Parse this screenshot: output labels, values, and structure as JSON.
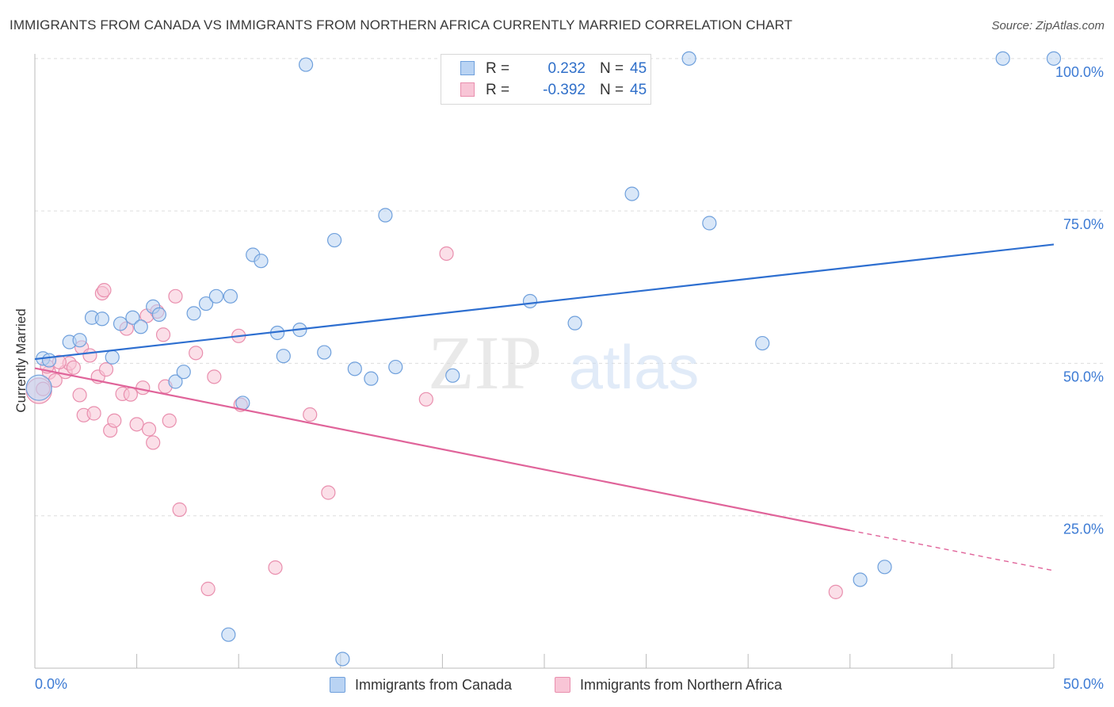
{
  "title": "IMMIGRANTS FROM CANADA VS IMMIGRANTS FROM NORTHERN AFRICA CURRENTLY MARRIED CORRELATION CHART",
  "source": "Source: ZipAtlas.com",
  "watermark": {
    "zip": "ZIP",
    "atlas": "atlas"
  },
  "legend": {
    "rows": [
      {
        "r_label": "R =",
        "r_value": "0.232",
        "n_label": "N =",
        "n_value": "45"
      },
      {
        "r_label": "R =",
        "r_value": "-0.392",
        "n_label": "N =",
        "n_value": "45"
      }
    ]
  },
  "colors": {
    "blue_fill": "#b9d3f3",
    "blue_stroke": "#6fa0dc",
    "blue_line": "#2e6fd0",
    "pink_fill": "#f8c5d6",
    "pink_stroke": "#e98fae",
    "pink_line": "#e0649a",
    "axis_text": "#3d7bd4",
    "grid": "#dddddd"
  },
  "chart_data": {
    "type": "scatter",
    "title": "IMMIGRANTS FROM CANADA VS IMMIGRANTS FROM NORTHERN AFRICA CURRENTLY MARRIED CORRELATION CHART",
    "xlabel": "",
    "ylabel": "Currently Married",
    "xlim": [
      0,
      50
    ],
    "ylim": [
      0,
      102
    ],
    "x_tick_labels": [
      "0.0%",
      "50.0%"
    ],
    "y_tick_labels": [
      "25.0%",
      "50.0%",
      "75.0%",
      "100.0%"
    ],
    "y_ticks": [
      25,
      50,
      75,
      100
    ],
    "grid": true,
    "legend_position": "bottom",
    "series": [
      {
        "name": "Immigrants from Canada",
        "r": 0.232,
        "n": 45,
        "trend": {
          "x0": 0,
          "y0": 50.7,
          "x1": 50,
          "y1": 69.5
        },
        "points": [
          [
            0.2,
            46
          ],
          [
            0.4,
            50.8
          ],
          [
            0.7,
            50.5
          ],
          [
            1.7,
            53.5
          ],
          [
            2.2,
            53.8
          ],
          [
            2.8,
            57.5
          ],
          [
            3.3,
            57.3
          ],
          [
            3.8,
            51.0
          ],
          [
            4.2,
            56.5
          ],
          [
            4.8,
            57.5
          ],
          [
            5.2,
            56.0
          ],
          [
            5.8,
            59.3
          ],
          [
            6.1,
            58.0
          ],
          [
            6.9,
            47.0
          ],
          [
            7.3,
            48.6
          ],
          [
            7.8,
            58.2
          ],
          [
            8.4,
            59.8
          ],
          [
            8.9,
            61.0
          ],
          [
            9.6,
            61.0
          ],
          [
            10.2,
            43.5
          ],
          [
            10.7,
            67.8
          ],
          [
            11.1,
            66.8
          ],
          [
            11.9,
            55.0
          ],
          [
            12.2,
            51.2
          ],
          [
            13.0,
            55.5
          ],
          [
            13.3,
            99.0
          ],
          [
            14.2,
            51.8
          ],
          [
            14.7,
            70.2
          ],
          [
            15.1,
            1.5
          ],
          [
            15.7,
            49.1
          ],
          [
            16.5,
            47.5
          ],
          [
            17.2,
            74.3
          ],
          [
            17.7,
            49.4
          ],
          [
            20.5,
            48.0
          ],
          [
            24.3,
            60.2
          ],
          [
            26.5,
            56.6
          ],
          [
            29.3,
            77.8
          ],
          [
            32.1,
            100
          ],
          [
            33.1,
            73.0
          ],
          [
            35.7,
            53.3
          ],
          [
            9.5,
            5.5
          ],
          [
            40.5,
            14.5
          ],
          [
            41.7,
            16.6
          ],
          [
            47.5,
            100
          ],
          [
            50.0,
            100
          ]
        ]
      },
      {
        "name": "Immigrants from Northern Africa",
        "r": -0.392,
        "n": 45,
        "trend": {
          "x0": 0,
          "y0": 49.2,
          "x1": 40,
          "y1": 22.6,
          "dash_x1": 50,
          "dash_y1": 16
        },
        "points": [
          [
            0.2,
            45.5
          ],
          [
            0.4,
            45.8
          ],
          [
            0.7,
            48.5
          ],
          [
            1.0,
            47.2
          ],
          [
            1.5,
            48.6
          ],
          [
            1.7,
            50.0
          ],
          [
            1.9,
            49.3
          ],
          [
            2.2,
            44.8
          ],
          [
            2.3,
            52.6
          ],
          [
            2.4,
            41.5
          ],
          [
            2.7,
            51.3
          ],
          [
            2.9,
            41.8
          ],
          [
            3.1,
            47.8
          ],
          [
            3.3,
            61.5
          ],
          [
            3.4,
            62.0
          ],
          [
            3.7,
            39.0
          ],
          [
            3.9,
            40.6
          ],
          [
            4.3,
            45.0
          ],
          [
            4.5,
            55.7
          ],
          [
            4.7,
            44.9
          ],
          [
            5.0,
            40.0
          ],
          [
            5.3,
            46.0
          ],
          [
            5.5,
            57.8
          ],
          [
            5.6,
            39.2
          ],
          [
            5.8,
            37.0
          ],
          [
            6.3,
            54.7
          ],
          [
            6.4,
            46.2
          ],
          [
            6.6,
            40.6
          ],
          [
            6.9,
            61.0
          ],
          [
            7.1,
            26.0
          ],
          [
            7.9,
            51.7
          ],
          [
            8.5,
            13.0
          ],
          [
            8.8,
            47.8
          ],
          [
            10.0,
            54.5
          ],
          [
            10.1,
            43.2
          ],
          [
            11.8,
            16.5
          ],
          [
            13.5,
            41.6
          ],
          [
            14.4,
            28.8
          ],
          [
            19.2,
            44.1
          ],
          [
            20.2,
            68.0
          ],
          [
            39.3,
            12.5
          ],
          [
            3.5,
            49.0
          ],
          [
            1.2,
            50.2
          ],
          [
            0.6,
            49.5
          ],
          [
            6.0,
            58.5
          ]
        ]
      }
    ]
  }
}
